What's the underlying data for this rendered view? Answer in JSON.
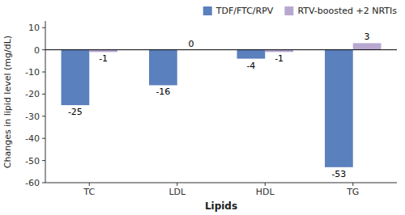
{
  "chart_data": {
    "type": "bar",
    "xlabel": "Lipids",
    "ylabel": "Changes in lipid level (mg/dL)",
    "categories": [
      "TC",
      "LDL",
      "HDL",
      "TG"
    ],
    "series": [
      {
        "name": "TDF/FTC/RPV",
        "color": "#5b80be",
        "values": [
          -25,
          -16,
          -4,
          -53
        ]
      },
      {
        "name": "RTV-boosted +2 NRTIs",
        "color": "#b8a8d0",
        "values": [
          -1,
          0,
          -1,
          3
        ]
      }
    ],
    "ylim": [
      -60,
      13
    ],
    "yticks": [
      -60,
      -50,
      -40,
      -30,
      -20,
      -10,
      0,
      10
    ],
    "grid": false,
    "legend": "upper right",
    "data_labels": true
  }
}
